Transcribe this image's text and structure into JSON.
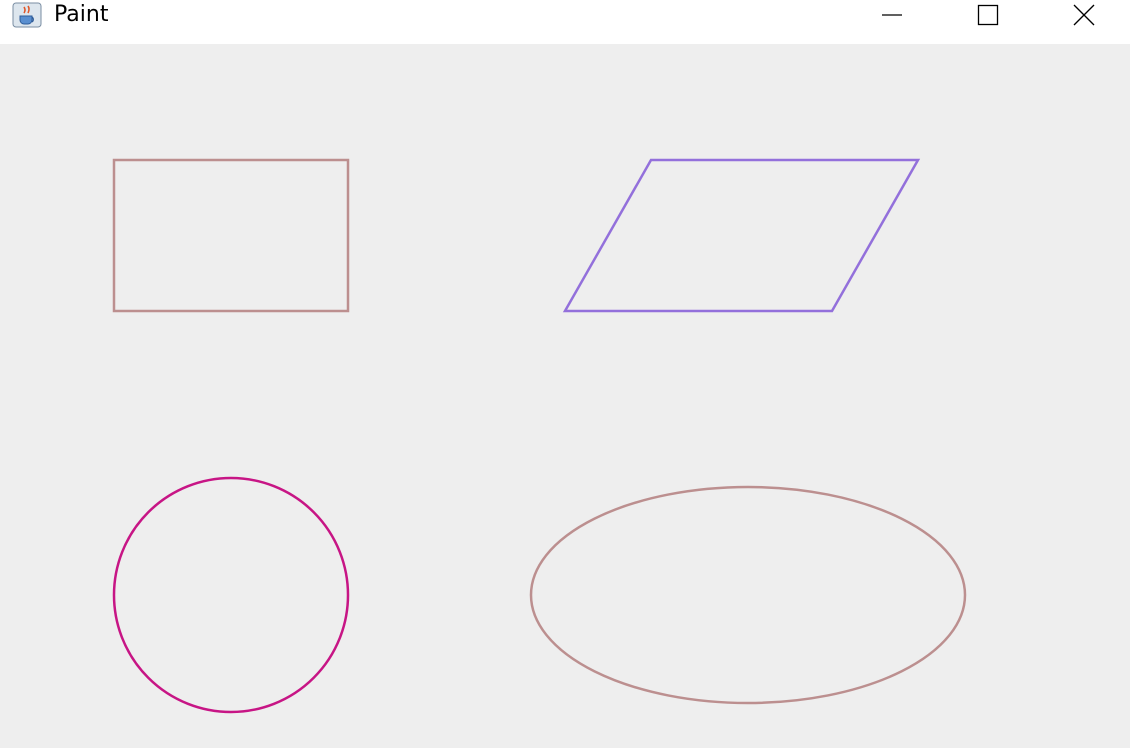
{
  "window": {
    "title": "Paint",
    "icon": "java-cup-icon"
  },
  "controls": {
    "minimize_icon": "minimize-icon",
    "maximize_icon": "maximize-icon",
    "close_icon": "close-icon"
  },
  "canvas": {
    "background": "#eeeeee",
    "shapes": [
      {
        "kind": "rectangle",
        "stroke": "#bc8f8f"
      },
      {
        "kind": "parallelogram",
        "stroke": "#9370db"
      },
      {
        "kind": "circle",
        "stroke": "#c71585"
      },
      {
        "kind": "ellipse",
        "stroke": "#bc8f8f"
      }
    ]
  }
}
